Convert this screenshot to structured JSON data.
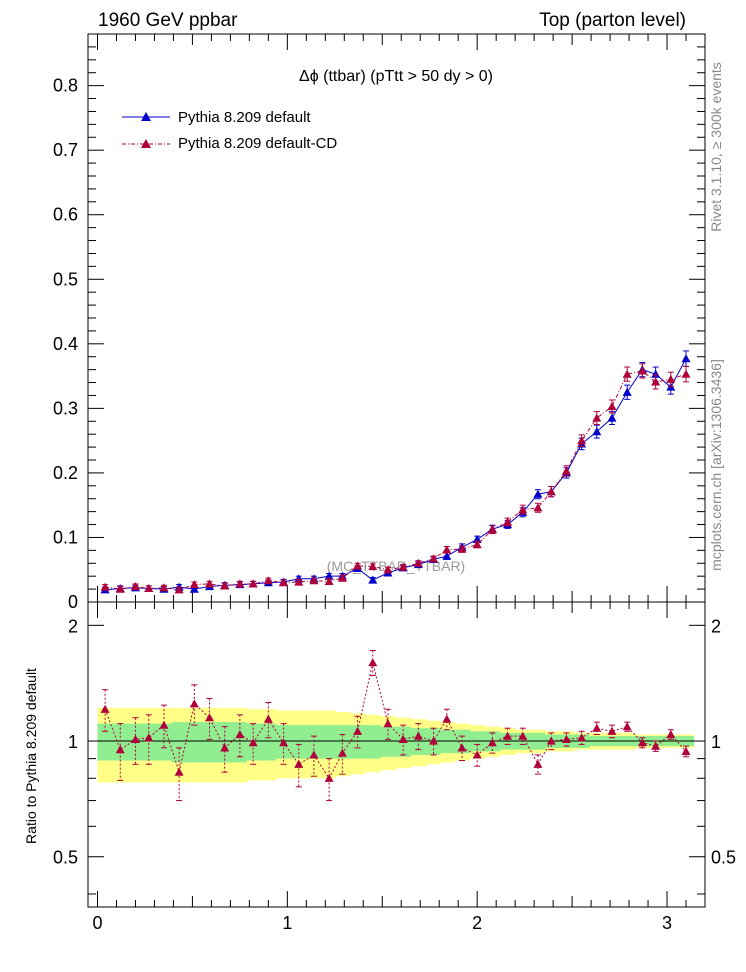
{
  "header": {
    "left": "1960 GeV ppbar",
    "right": "Top (parton level)"
  },
  "side_labels": {
    "rivet": "Rivet 3.1.10, ≥ 300k events",
    "mcplots": "mcplots.cern.ch [arXiv:1306.3436]"
  },
  "chart_data": [
    {
      "type": "line",
      "title": "Δϕ (ttbar) (pTtt > 50 dy > 0)",
      "watermark": "(MC_TTBAR_TTBAR)",
      "xlim": [
        -0.05,
        3.2
      ],
      "ylim": [
        0,
        0.88
      ],
      "yticks": [
        {
          "v": 0,
          "label": "0"
        },
        {
          "v": 0.1,
          "label": "0.1"
        },
        {
          "v": 0.2,
          "label": "0.2"
        },
        {
          "v": 0.3,
          "label": "0.3"
        },
        {
          "v": 0.4,
          "label": "0.4"
        },
        {
          "v": 0.5,
          "label": "0.5"
        },
        {
          "v": 0.6,
          "label": "0.6"
        },
        {
          "v": 0.7,
          "label": "0.7"
        },
        {
          "v": 0.8,
          "label": "0.8"
        }
      ],
      "x": [
        0.04,
        0.12,
        0.2,
        0.27,
        0.35,
        0.43,
        0.51,
        0.59,
        0.67,
        0.75,
        0.82,
        0.9,
        0.98,
        1.06,
        1.14,
        1.22,
        1.29,
        1.37,
        1.45,
        1.53,
        1.61,
        1.69,
        1.77,
        1.84,
        1.92,
        2.0,
        2.08,
        2.16,
        2.24,
        2.32,
        2.39,
        2.47,
        2.55,
        2.63,
        2.71,
        2.79,
        2.87,
        2.94,
        3.02,
        3.1
      ],
      "series": [
        {
          "name": "Pythia 8.209 default",
          "color": "#0000cc",
          "marker": "triangle",
          "line": "solid",
          "y": [
            0.019,
            0.021,
            0.022,
            0.021,
            0.02,
            0.023,
            0.02,
            0.024,
            0.026,
            0.027,
            0.028,
            0.03,
            0.031,
            0.036,
            0.036,
            0.04,
            0.04,
            0.052,
            0.034,
            0.045,
            0.053,
            0.058,
            0.066,
            0.071,
            0.085,
            0.097,
            0.113,
            0.12,
            0.139,
            0.167,
            0.171,
            0.2,
            0.245,
            0.264,
            0.285,
            0.325,
            0.36,
            0.353,
            0.333,
            0.377
          ],
          "err": [
            0.004,
            0.004,
            0.004,
            0.004,
            0.004,
            0.004,
            0.004,
            0.004,
            0.004,
            0.004,
            0.004,
            0.004,
            0.004,
            0.004,
            0.004,
            0.004,
            0.004,
            0.004,
            0.004,
            0.004,
            0.004,
            0.004,
            0.004,
            0.005,
            0.005,
            0.005,
            0.006,
            0.006,
            0.007,
            0.007,
            0.008,
            0.008,
            0.009,
            0.01,
            0.01,
            0.011,
            0.011,
            0.011,
            0.011,
            0.012
          ]
        },
        {
          "name": "Pythia 8.209 default-CD",
          "color": "#b0003a",
          "marker": "triangle",
          "line": "dashdot",
          "y": [
            0.023,
            0.02,
            0.024,
            0.021,
            0.022,
            0.019,
            0.027,
            0.028,
            0.025,
            0.028,
            0.028,
            0.033,
            0.03,
            0.031,
            0.033,
            0.032,
            0.037,
            0.056,
            0.055,
            0.05,
            0.054,
            0.06,
            0.067,
            0.081,
            0.082,
            0.089,
            0.112,
            0.124,
            0.143,
            0.146,
            0.171,
            0.203,
            0.25,
            0.285,
            0.303,
            0.353,
            0.358,
            0.341,
            0.345,
            0.353
          ],
          "err": [
            0.004,
            0.004,
            0.004,
            0.004,
            0.004,
            0.004,
            0.004,
            0.004,
            0.004,
            0.004,
            0.004,
            0.004,
            0.004,
            0.004,
            0.004,
            0.004,
            0.004,
            0.004,
            0.004,
            0.004,
            0.004,
            0.004,
            0.004,
            0.005,
            0.005,
            0.005,
            0.006,
            0.006,
            0.007,
            0.007,
            0.008,
            0.008,
            0.009,
            0.01,
            0.01,
            0.011,
            0.011,
            0.011,
            0.011,
            0.012
          ]
        }
      ],
      "legend": [
        "Pythia 8.209 default",
        "Pythia 8.209 default-CD"
      ]
    },
    {
      "type": "line",
      "ylabel": "Ratio to Pythia 8.209 default",
      "xlim": [
        -0.05,
        3.2
      ],
      "ylim": [
        0.37,
        2.3
      ],
      "yticks": [
        {
          "v": 0.5,
          "label": "0.5"
        },
        {
          "v": 1,
          "label": "1"
        },
        {
          "v": 2,
          "label": "2"
        }
      ],
      "xticks": [
        {
          "v": 0,
          "label": "0"
        },
        {
          "v": 1,
          "label": "1"
        },
        {
          "v": 2,
          "label": "2"
        },
        {
          "v": 3,
          "label": "3"
        }
      ],
      "band_green_halfwidth": [
        0.11,
        0.11,
        0.11,
        0.11,
        0.11,
        0.12,
        0.12,
        0.12,
        0.12,
        0.12,
        0.11,
        0.11,
        0.1,
        0.1,
        0.1,
        0.1,
        0.1,
        0.1,
        0.1,
        0.09,
        0.09,
        0.08,
        0.08,
        0.07,
        0.07,
        0.06,
        0.06,
        0.05,
        0.05,
        0.05,
        0.04,
        0.04,
        0.04,
        0.03,
        0.03,
        0.03,
        0.03,
        0.03,
        0.03,
        0.03
      ],
      "band_yellow_halfwidth": [
        0.22,
        0.22,
        0.22,
        0.22,
        0.22,
        0.22,
        0.22,
        0.22,
        0.22,
        0.22,
        0.21,
        0.21,
        0.2,
        0.2,
        0.2,
        0.2,
        0.19,
        0.18,
        0.17,
        0.16,
        0.15,
        0.14,
        0.13,
        0.12,
        0.11,
        0.1,
        0.09,
        0.08,
        0.07,
        0.07,
        0.06,
        0.06,
        0.05,
        0.05,
        0.05,
        0.05,
        0.04,
        0.04,
        0.04,
        0.04
      ],
      "ratio": [
        1.21,
        0.95,
        1.01,
        1.02,
        1.1,
        0.83,
        1.25,
        1.15,
        0.96,
        1.04,
        0.99,
        1.14,
        0.99,
        0.87,
        0.92,
        0.8,
        0.93,
        1.06,
        1.6,
        1.11,
        1.01,
        1.03,
        1.0,
        1.14,
        0.96,
        0.92,
        0.99,
        1.03,
        1.03,
        0.87,
        1.0,
        1.01,
        1.02,
        1.08,
        1.06,
        1.09,
        0.99,
        0.97,
        1.04,
        0.94
      ],
      "ratio_err": [
        0.15,
        0.16,
        0.14,
        0.15,
        0.14,
        0.13,
        0.15,
        0.14,
        0.13,
        0.13,
        0.12,
        0.12,
        0.12,
        0.11,
        0.11,
        0.1,
        0.11,
        0.1,
        0.12,
        0.1,
        0.09,
        0.08,
        0.08,
        0.07,
        0.07,
        0.06,
        0.06,
        0.05,
        0.05,
        0.05,
        0.05,
        0.04,
        0.04,
        0.04,
        0.04,
        0.03,
        0.03,
        0.03,
        0.03,
        0.03
      ]
    }
  ]
}
